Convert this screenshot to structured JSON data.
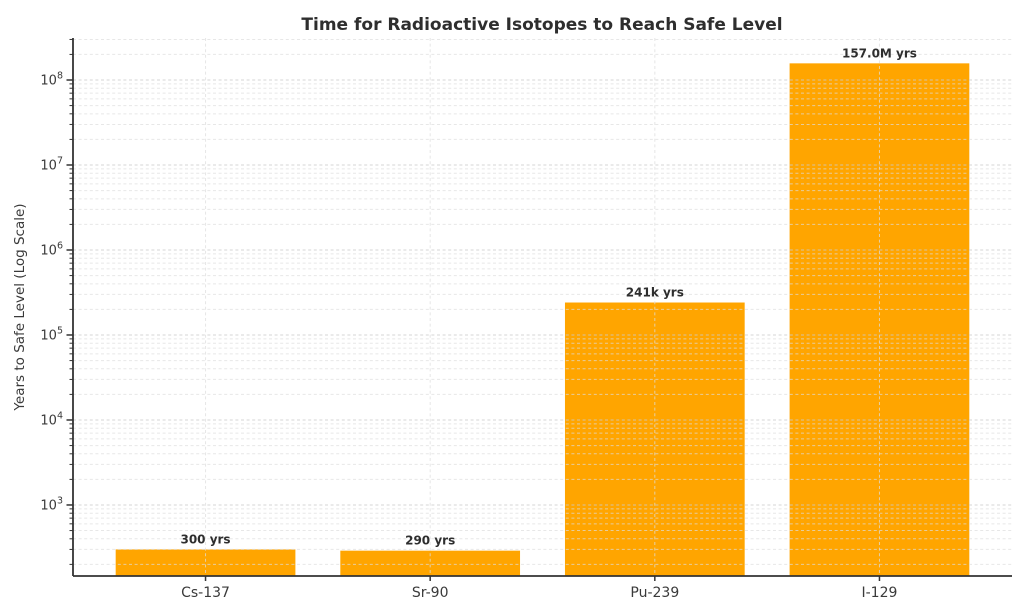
{
  "chart_data": {
    "type": "bar",
    "title": "Time for Radioactive Isotopes to Reach Safe Level",
    "xlabel": "",
    "ylabel": "Years to Safe Level (Log Scale)",
    "yscale": "log",
    "categories": [
      "Cs-137",
      "Sr-90",
      "Pu-239",
      "I-129"
    ],
    "values": [
      300,
      290,
      241000,
      157000000
    ],
    "bar_labels": [
      "300 yrs",
      "290 yrs",
      "241k yrs",
      "157.0M yrs"
    ],
    "ylim": [
      146,
      312000000
    ],
    "ytick_exponents": [
      3,
      4,
      5,
      6,
      7,
      8
    ],
    "grid": {
      "horizontal": "major-and-minor-log",
      "vertical": "category-centers",
      "style": "dashed",
      "above_bars": true
    },
    "legend": "none"
  },
  "colors": {
    "bar": "#FFA500",
    "title_text": "#2e2e2e",
    "tick_text": "#3a3a3a",
    "value_label_text": "#2e2e2e",
    "spine": "#333333",
    "grid_major": "#cccccc",
    "grid_minor": "#dddddd"
  }
}
